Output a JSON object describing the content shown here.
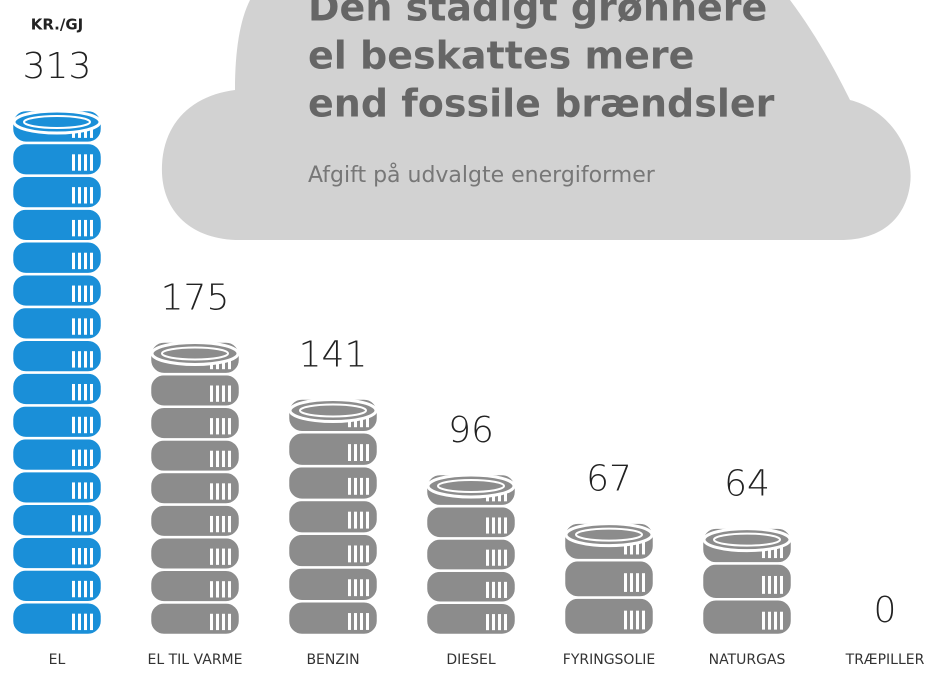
{
  "chart_data": {
    "type": "bar",
    "title": [
      "Den stadigt grønnere",
      "el beskattes mere",
      "end fossile brændsler"
    ],
    "subtitle": "Afgift på udvalgte energiformer",
    "unit": "KR./GJ",
    "categories": [
      "EL",
      "EL TIL VARME",
      "BENZIN",
      "DIESEL",
      "FYRINGSOLIE",
      "NATURGAS",
      "TRÆPILLER"
    ],
    "values": [
      313,
      175,
      141,
      96,
      67,
      64,
      0
    ],
    "colors": [
      "#1a8fd8",
      "#8c8c8c",
      "#8c8c8c",
      "#8c8c8c",
      "#8c8c8c",
      "#8c8c8c",
      "#8c8c8c"
    ]
  }
}
